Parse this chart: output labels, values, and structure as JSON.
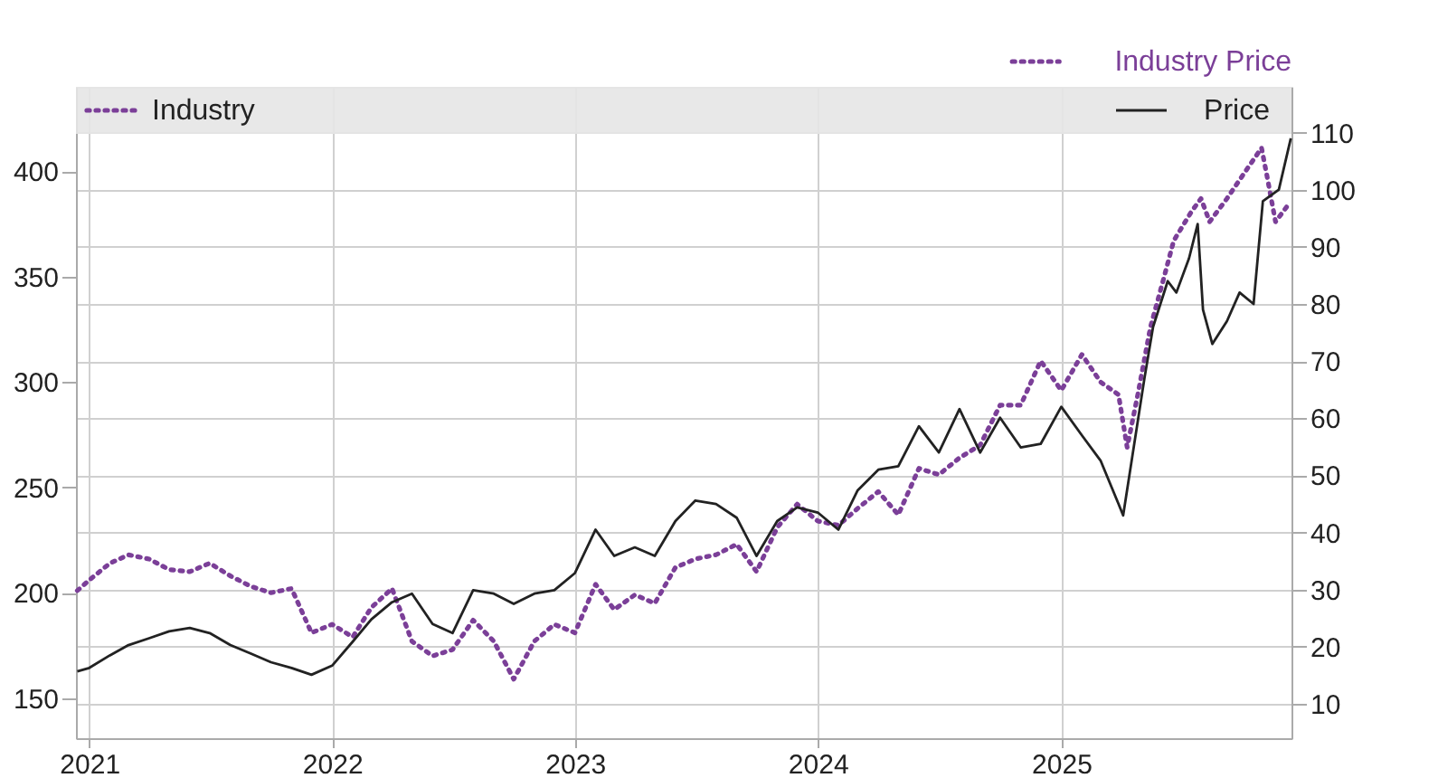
{
  "chart_data": {
    "type": "line",
    "title": "Industry Price",
    "series": [
      {
        "name": "Industry",
        "color": "#7b3f98",
        "line_style": "dotted",
        "axis": "y",
        "x": [
          "2020-12-14",
          "2021-01-01",
          "2021-02-01",
          "2021-03-01",
          "2021-04-01",
          "2021-05-01",
          "2021-06-01",
          "2021-07-01",
          "2021-08-01",
          "2021-09-01",
          "2021-10-01",
          "2021-11-01",
          "2021-12-01",
          "2022-01-01",
          "2022-02-01",
          "2022-03-01",
          "2022-04-01",
          "2022-05-01",
          "2022-06-01",
          "2022-07-01",
          "2022-08-01",
          "2022-09-01",
          "2022-10-01",
          "2022-11-01",
          "2022-12-01",
          "2023-01-01",
          "2023-02-01",
          "2023-03-01",
          "2023-04-01",
          "2023-05-01",
          "2023-06-01",
          "2023-07-01",
          "2023-08-01",
          "2023-09-01",
          "2023-10-01",
          "2023-11-01",
          "2023-12-01",
          "2024-01-01",
          "2024-02-01",
          "2024-03-01",
          "2024-04-01",
          "2024-05-01",
          "2024-06-01",
          "2024-07-01",
          "2024-08-01",
          "2024-09-01",
          "2024-10-01",
          "2024-11-01",
          "2024-12-01",
          "2025-01-01",
          "2025-02-01",
          "2025-03-01",
          "2025-03-28",
          "2025-04-10",
          "2025-04-26",
          "2025-05-15",
          "2025-06-03",
          "2025-06-19",
          "2025-07-16",
          "2025-07-30",
          "2025-08-12",
          "2025-09-07",
          "2025-10-05",
          "2025-10-29",
          "2025-11-06",
          "2025-11-19",
          "2025-12-08"
        ],
        "values": [
          201,
          206,
          214,
          218,
          216,
          211,
          210,
          214,
          208,
          203,
          200,
          202,
          181,
          185,
          179,
          193,
          202,
          177,
          170,
          173,
          187,
          177,
          159,
          177,
          185,
          181,
          204,
          192,
          199,
          195,
          212,
          216,
          218,
          223,
          210,
          231,
          242,
          234,
          232,
          240,
          248,
          237,
          259,
          256,
          264,
          270,
          289,
          289,
          310,
          296,
          313,
          300,
          294,
          269,
          294,
          326,
          348,
          367,
          381,
          387,
          376,
          387,
          400,
          411,
          398,
          376,
          384
        ]
      },
      {
        "name": "Price",
        "color": "#222222",
        "line_style": "solid",
        "axis": "y2",
        "x": [
          "2020-12-14",
          "2021-01-01",
          "2021-02-01",
          "2021-03-01",
          "2021-04-01",
          "2021-05-01",
          "2021-06-01",
          "2021-07-01",
          "2021-08-01",
          "2021-09-01",
          "2021-10-01",
          "2021-11-01",
          "2021-12-01",
          "2022-01-01",
          "2022-02-01",
          "2022-03-01",
          "2022-04-01",
          "2022-05-01",
          "2022-06-01",
          "2022-07-01",
          "2022-08-01",
          "2022-09-01",
          "2022-10-01",
          "2022-11-01",
          "2022-12-01",
          "2023-01-01",
          "2023-02-01",
          "2023-03-01",
          "2023-04-01",
          "2023-05-01",
          "2023-06-01",
          "2023-07-01",
          "2023-08-01",
          "2023-09-01",
          "2023-10-01",
          "2023-11-01",
          "2023-12-01",
          "2024-01-01",
          "2024-02-01",
          "2024-03-01",
          "2024-04-01",
          "2024-05-01",
          "2024-06-01",
          "2024-07-01",
          "2024-08-01",
          "2024-09-01",
          "2024-10-01",
          "2024-11-01",
          "2024-12-01",
          "2025-01-01",
          "2025-02-01",
          "2025-03-01",
          "2025-03-28",
          "2025-04-04",
          "2025-05-06",
          "2025-05-19",
          "2025-06-10",
          "2025-06-23",
          "2025-07-12",
          "2025-07-25",
          "2025-08-02",
          "2025-08-16",
          "2025-09-07",
          "2025-09-26",
          "2025-10-17",
          "2025-10-31",
          "2025-11-24",
          "2025-12-12"
        ],
        "values": [
          15.7,
          16.3,
          18.5,
          20.3,
          21.5,
          22.7,
          23.3,
          22.4,
          20.3,
          18.8,
          17.3,
          16.3,
          15.1,
          16.7,
          20.9,
          24.8,
          27.8,
          29.3,
          24.0,
          22.4,
          29.9,
          29.3,
          27.5,
          29.3,
          29.9,
          32.9,
          40.5,
          35.9,
          37.4,
          35.9,
          42.0,
          45.6,
          45.0,
          42.6,
          35.9,
          42.0,
          44.4,
          43.5,
          40.5,
          47.4,
          51.0,
          51.6,
          58.6,
          54.0,
          61.6,
          54.0,
          60.1,
          54.9,
          55.5,
          62,
          57,
          52.6,
          45,
          43,
          67,
          76,
          84,
          82,
          88,
          94,
          79,
          73,
          77,
          82,
          80,
          98,
          100,
          109
        ]
      }
    ],
    "xlim": [
      "2020-12-12",
      "2025-12-13"
    ],
    "xticks": [
      {
        "value": "2021-01-01",
        "label": "2021"
      },
      {
        "value": "2022-01-01",
        "label": "2022"
      },
      {
        "value": "2023-01-01",
        "label": "2023"
      },
      {
        "value": "2024-01-01",
        "label": "2024"
      },
      {
        "value": "2025-01-01",
        "label": "2025"
      }
    ],
    "ylim": [
      131,
      440
    ],
    "yticks": [
      150,
      200,
      250,
      300,
      350,
      400
    ],
    "y2lim": [
      4,
      118
    ],
    "y2ticks": [
      10,
      20,
      30,
      40,
      50,
      60,
      70,
      80,
      90,
      100,
      110
    ],
    "grid": true,
    "legend": "top",
    "marker": "none"
  }
}
